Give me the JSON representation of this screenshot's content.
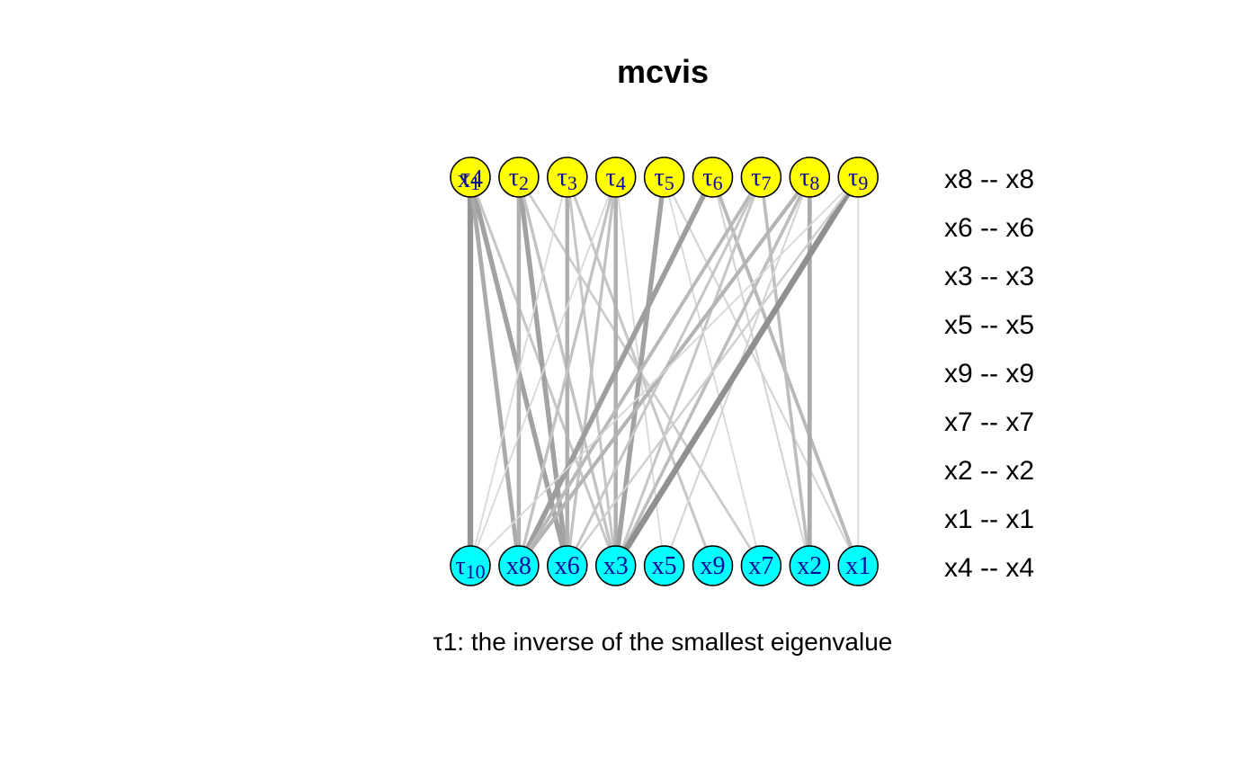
{
  "title": "mcvis",
  "caption": "τ1: the inverse of the smallest eigenvalue",
  "colors": {
    "top_node_fill": "#ffff00",
    "bottom_node_fill": "#00ffff",
    "node_label": "#0a0a9a",
    "edge_base": "#8c8c8c"
  },
  "top_nodes": [
    {
      "id": "t1",
      "label": "τ1",
      "overlay": "x4"
    },
    {
      "id": "t2",
      "label": "τ2"
    },
    {
      "id": "t3",
      "label": "τ3"
    },
    {
      "id": "t4",
      "label": "τ4"
    },
    {
      "id": "t5",
      "label": "τ5"
    },
    {
      "id": "t6",
      "label": "τ6"
    },
    {
      "id": "t7",
      "label": "τ7"
    },
    {
      "id": "t8",
      "label": "τ8"
    },
    {
      "id": "t9",
      "label": "τ9"
    }
  ],
  "bottom_nodes": [
    {
      "id": "t10",
      "label": "τ10"
    },
    {
      "id": "x8",
      "label": "x8"
    },
    {
      "id": "x6",
      "label": "x6"
    },
    {
      "id": "x3",
      "label": "x3"
    },
    {
      "id": "x5",
      "label": "x5"
    },
    {
      "id": "x9",
      "label": "x9"
    },
    {
      "id": "x7",
      "label": "x7"
    },
    {
      "id": "x2",
      "label": "x2"
    },
    {
      "id": "x1",
      "label": "x1"
    }
  ],
  "pair_labels": [
    "x8 -- x8",
    "x6 -- x6",
    "x3 -- x3",
    "x5 -- x5",
    "x9 -- x9",
    "x7 -- x7",
    "x2 -- x2",
    "x1 -- x1",
    "x4 -- x4"
  ],
  "edges": [
    {
      "from": 0,
      "to": 0,
      "w": 0.85
    },
    {
      "from": 0,
      "to": 1,
      "w": 0.6
    },
    {
      "from": 0,
      "to": 2,
      "w": 0.7
    },
    {
      "from": 0,
      "to": 3,
      "w": 0.3
    },
    {
      "from": 1,
      "to": 1,
      "w": 0.55
    },
    {
      "from": 1,
      "to": 2,
      "w": 0.7
    },
    {
      "from": 1,
      "to": 3,
      "w": 0.35
    },
    {
      "from": 1,
      "to": 6,
      "w": 0.25
    },
    {
      "from": 2,
      "to": 2,
      "w": 0.55
    },
    {
      "from": 2,
      "to": 3,
      "w": 0.3
    },
    {
      "from": 2,
      "to": 5,
      "w": 0.3
    },
    {
      "from": 2,
      "to": 0,
      "w": 0.1
    },
    {
      "from": 3,
      "to": 3,
      "w": 0.55
    },
    {
      "from": 3,
      "to": 1,
      "w": 0.35
    },
    {
      "from": 3,
      "to": 2,
      "w": 0.35
    },
    {
      "from": 3,
      "to": 0,
      "w": 0.1
    },
    {
      "from": 3,
      "to": 4,
      "w": 0.1
    },
    {
      "from": 4,
      "to": 3,
      "w": 0.7
    },
    {
      "from": 4,
      "to": 8,
      "w": 0.15
    },
    {
      "from": 4,
      "to": 6,
      "w": 0.1
    },
    {
      "from": 5,
      "to": 1,
      "w": 0.75
    },
    {
      "from": 5,
      "to": 8,
      "w": 0.45
    },
    {
      "from": 5,
      "to": 7,
      "w": 0.15
    },
    {
      "from": 6,
      "to": 1,
      "w": 0.45
    },
    {
      "from": 6,
      "to": 2,
      "w": 0.3
    },
    {
      "from": 6,
      "to": 3,
      "w": 0.3
    },
    {
      "from": 6,
      "to": 7,
      "w": 0.4
    },
    {
      "from": 7,
      "to": 7,
      "w": 0.6
    },
    {
      "from": 7,
      "to": 1,
      "w": 0.5
    },
    {
      "from": 7,
      "to": 3,
      "w": 0.4
    },
    {
      "from": 7,
      "to": 4,
      "w": 0.15
    },
    {
      "from": 8,
      "to": 3,
      "w": 0.9
    },
    {
      "from": 8,
      "to": 8,
      "w": 0.1
    },
    {
      "from": 8,
      "to": 0,
      "w": 0.1
    },
    {
      "from": 8,
      "to": 2,
      "w": 0.2
    }
  ]
}
